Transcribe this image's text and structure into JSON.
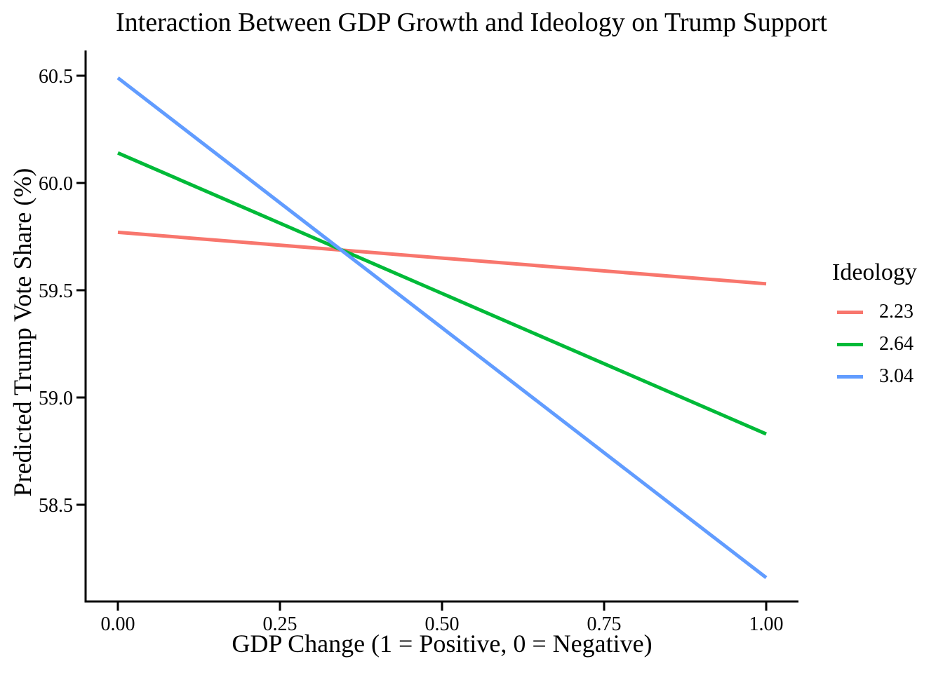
{
  "chart_data": {
    "type": "line",
    "title": "Interaction Between GDP Growth and Ideology on Trump Support",
    "xlabel": "GDP Change (1 = Positive, 0 = Negative)",
    "ylabel": "Predicted Trump Vote Share (%)",
    "legend_title": "Ideology",
    "legend_position": "right",
    "x": [
      0,
      1
    ],
    "series": [
      {
        "name": "2.23",
        "color": "#F8766D",
        "values": [
          59.77,
          59.53
        ]
      },
      {
        "name": "2.64",
        "color": "#00BA38",
        "values": [
          60.14,
          58.83
        ]
      },
      {
        "name": "3.04",
        "color": "#619CFF",
        "values": [
          60.49,
          58.16
        ]
      }
    ],
    "x_ticks": [
      {
        "value": 0.0,
        "label": "0.00"
      },
      {
        "value": 0.25,
        "label": "0.25"
      },
      {
        "value": 0.5,
        "label": "0.50"
      },
      {
        "value": 0.75,
        "label": "0.75"
      },
      {
        "value": 1.0,
        "label": "1.00"
      }
    ],
    "y_ticks": [
      {
        "value": 60.5,
        "label": "60.5"
      },
      {
        "value": 60.0,
        "label": "60.0"
      },
      {
        "value": 59.5,
        "label": "59.5"
      },
      {
        "value": 59.0,
        "label": "59.0"
      },
      {
        "value": 58.5,
        "label": "58.5"
      }
    ],
    "xlim": [
      -0.05,
      1.05
    ],
    "ylim": [
      58.05,
      60.62
    ],
    "grid": false,
    "background": "#FFFFFF",
    "axis_color": "#000000",
    "text_color": "#000000",
    "line_width": 5
  }
}
